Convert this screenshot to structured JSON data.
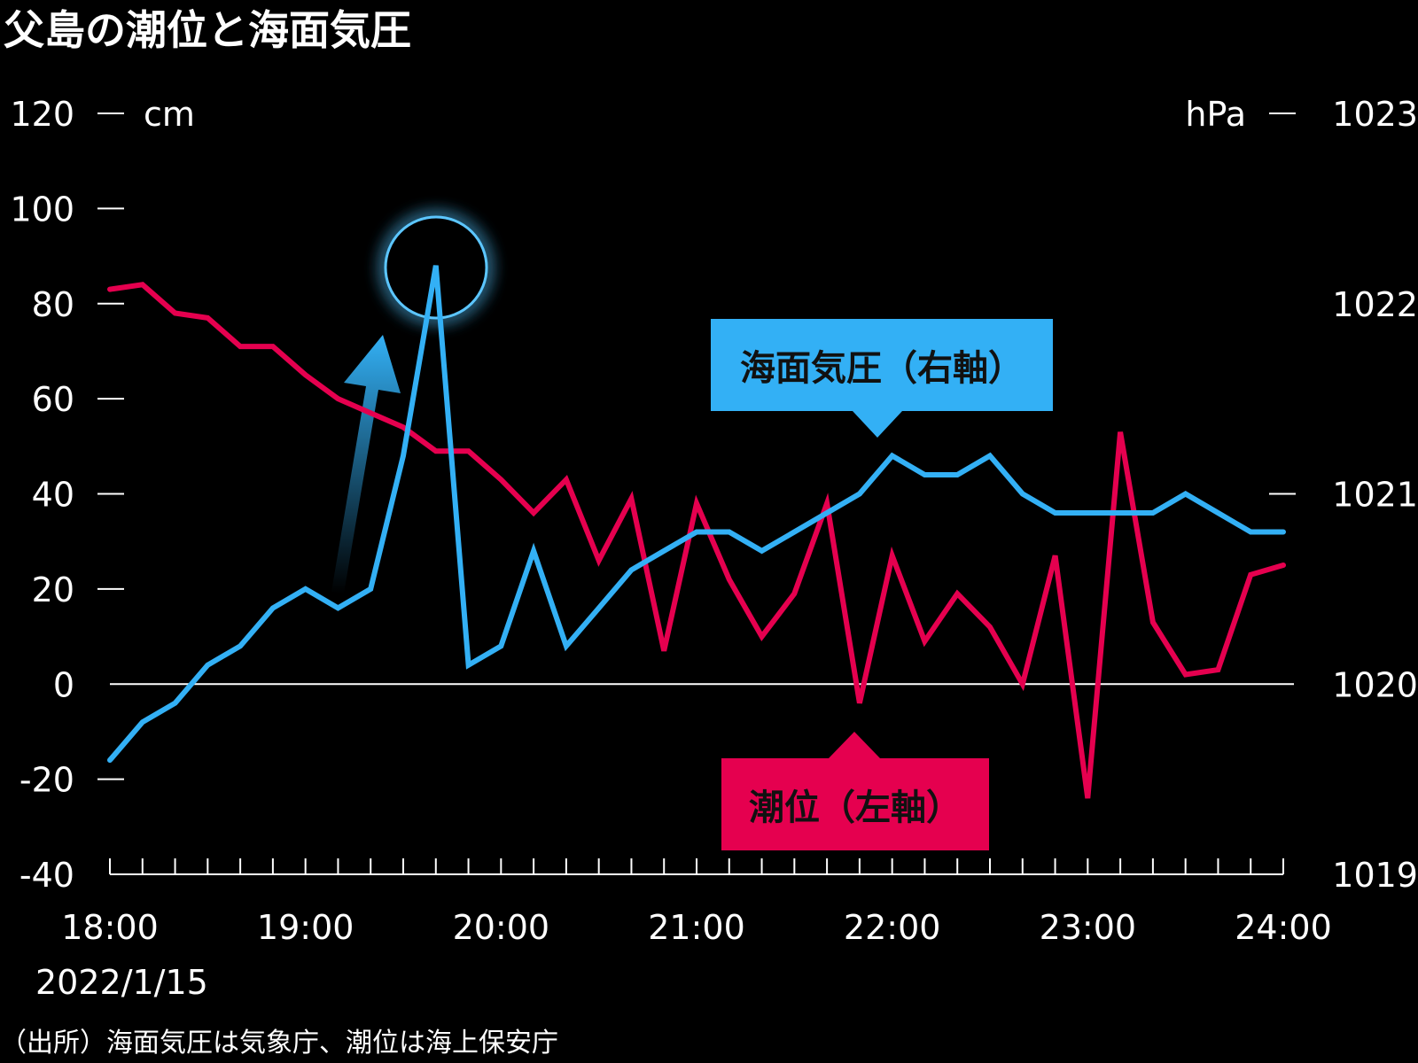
{
  "title": "父島の潮位と海面気圧",
  "source_note": "（出所）海面気圧は気象庁、潮位は海上保安庁",
  "colors": {
    "pressure": "#33b0f5",
    "tide": "#e5004f",
    "background": "#000000",
    "axis": "#ffffff"
  },
  "callouts": {
    "pressure_label": "海面気圧（右軸）",
    "tide_label": "潮位（左軸）"
  },
  "chart_data": {
    "type": "line",
    "title": "父島の潮位と海面気圧",
    "date_label": "2022/1/15",
    "x_tick_labels": [
      "18:00",
      "19:00",
      "20:00",
      "21:00",
      "22:00",
      "23:00",
      "24:00"
    ],
    "x": [
      "18:00",
      "18:10",
      "18:20",
      "18:30",
      "18:40",
      "18:50",
      "19:00",
      "19:10",
      "19:20",
      "19:30",
      "19:40",
      "19:50",
      "20:00",
      "20:10",
      "20:20",
      "20:30",
      "20:40",
      "20:50",
      "21:00",
      "21:10",
      "21:20",
      "21:30",
      "21:40",
      "21:50",
      "22:00",
      "22:10",
      "22:20",
      "22:30",
      "22:40",
      "22:50",
      "23:00",
      "23:10",
      "23:20",
      "23:30",
      "23:40",
      "23:50",
      "24:00"
    ],
    "xlim": [
      "18:00",
      "24:00"
    ],
    "left_axis": {
      "unit": "cm",
      "ylim": [
        -40,
        120
      ],
      "ticks": [
        -40,
        -20,
        0,
        20,
        40,
        60,
        80,
        100,
        120
      ]
    },
    "right_axis": {
      "unit": "hPa",
      "ylim": [
        1019,
        1023
      ],
      "ticks": [
        1019,
        1020,
        1021,
        1022,
        1023
      ]
    },
    "zero_line": true,
    "series": [
      {
        "name": "潮位（左軸）",
        "axis": "left",
        "values": [
          83,
          84,
          78,
          77,
          71,
          71,
          65,
          60,
          57,
          54,
          49,
          49,
          43,
          36,
          43,
          26,
          39,
          7,
          38,
          22,
          10,
          19,
          38,
          -4,
          27,
          9,
          19,
          12,
          0,
          27,
          -24,
          53,
          13,
          2,
          3,
          23,
          25
        ]
      },
      {
        "name": "海面気圧（右軸）",
        "axis": "right",
        "values": [
          1019.6,
          1019.8,
          1019.9,
          1020.1,
          1020.2,
          1020.4,
          1020.5,
          1020.4,
          1020.5,
          1021.2,
          1022.2,
          1020.1,
          1020.2,
          1020.7,
          1020.2,
          1020.4,
          1020.6,
          1020.7,
          1020.8,
          1020.8,
          1020.7,
          1020.8,
          1020.9,
          1021.0,
          1021.2,
          1021.1,
          1021.1,
          1021.2,
          1021.0,
          1020.9,
          1020.9,
          1020.9,
          1020.9,
          1021.0,
          1020.9,
          1020.8,
          1020.8
        ]
      }
    ],
    "highlight": {
      "series": "海面気圧（右軸）",
      "x": "19:40",
      "marker": "glowing-circle-with-arrow"
    }
  }
}
